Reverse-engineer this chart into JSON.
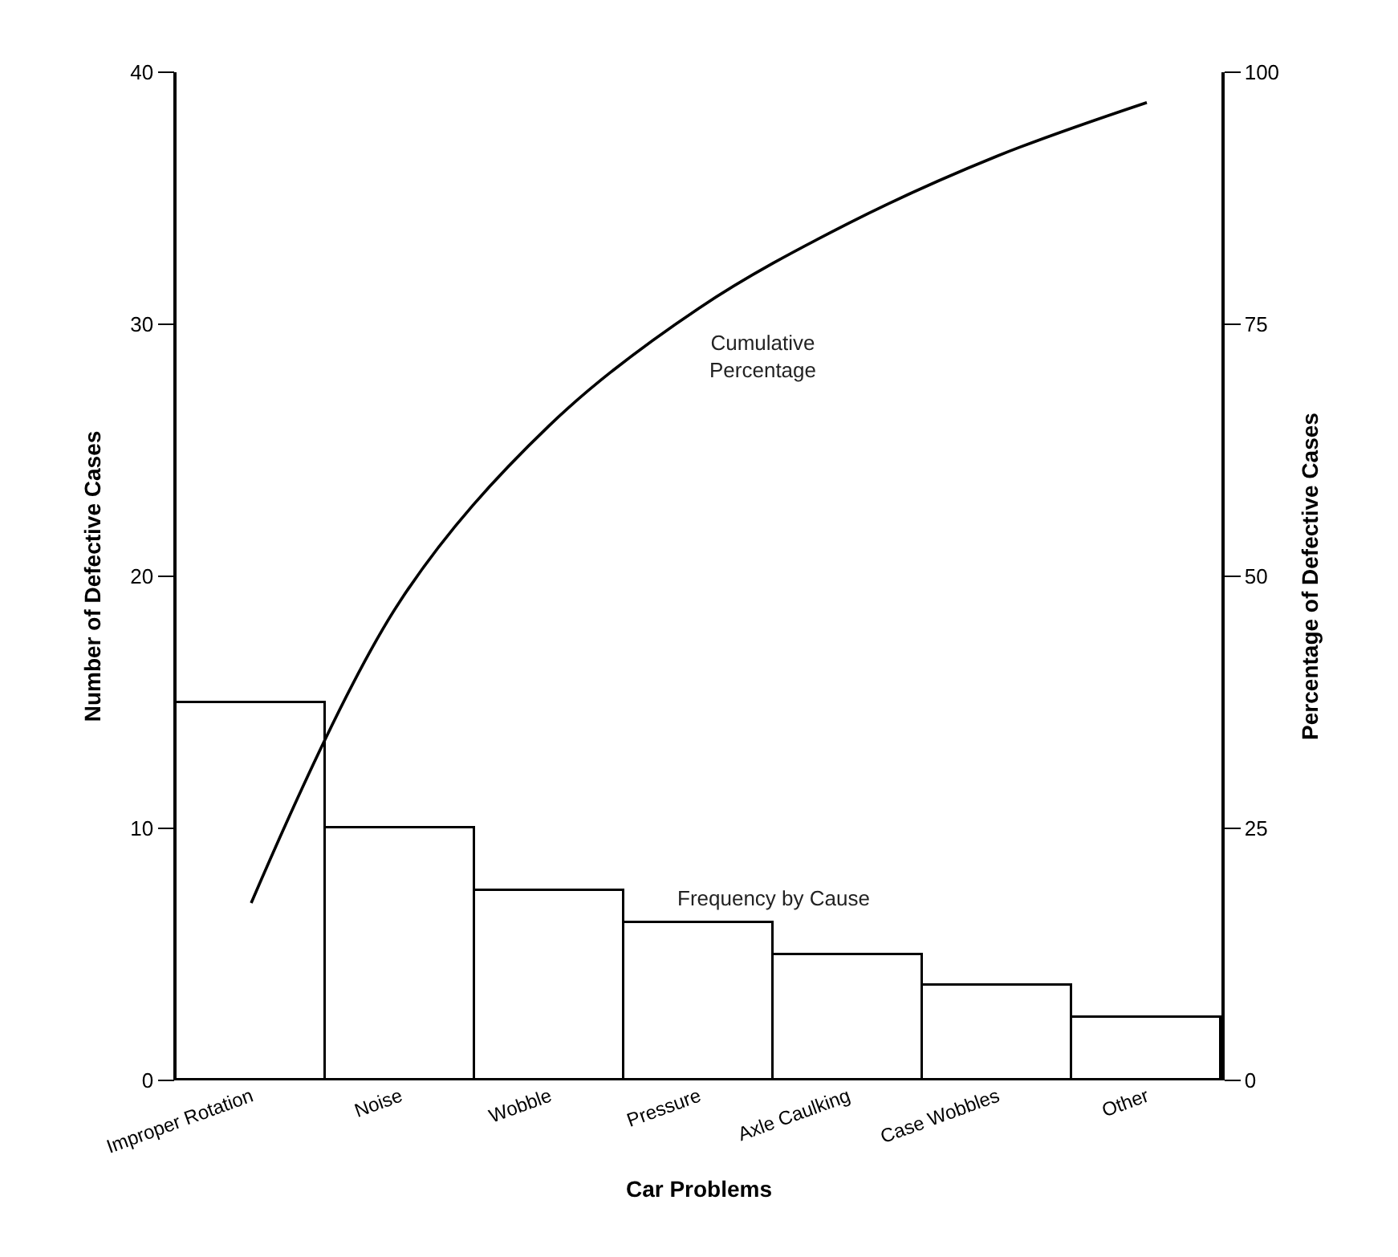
{
  "chart_data": {
    "type": "bar",
    "xlabel": "Car Problems",
    "ylabel": "Number of Defective Cases",
    "y2label": "Percentage of Defective Cases",
    "categories": [
      "Improper Rotation",
      "Noise",
      "Wobble",
      "Pressure",
      "Axle Caulking",
      "Case Wobbles",
      "Other"
    ],
    "series": [
      {
        "name": "Frequency by Cause",
        "color": "#ffffff",
        "values": [
          15,
          10,
          7.5,
          6.25,
          5,
          3.75,
          2.5
        ]
      },
      {
        "name": "Cumulative\nPercentage",
        "type": "line",
        "axis": "y2",
        "color": "#000000",
        "values": [
          17.6,
          47.6,
          65,
          76.6,
          85,
          91.7,
          97
        ]
      }
    ],
    "ylim": [
      0,
      40
    ],
    "yticks": [
      0,
      10,
      20,
      30,
      40
    ],
    "y2lim": [
      0,
      100
    ],
    "y2ticks": [
      0,
      25,
      50,
      75,
      100
    ],
    "legend": false,
    "marker": "none",
    "line_style": "solid"
  }
}
